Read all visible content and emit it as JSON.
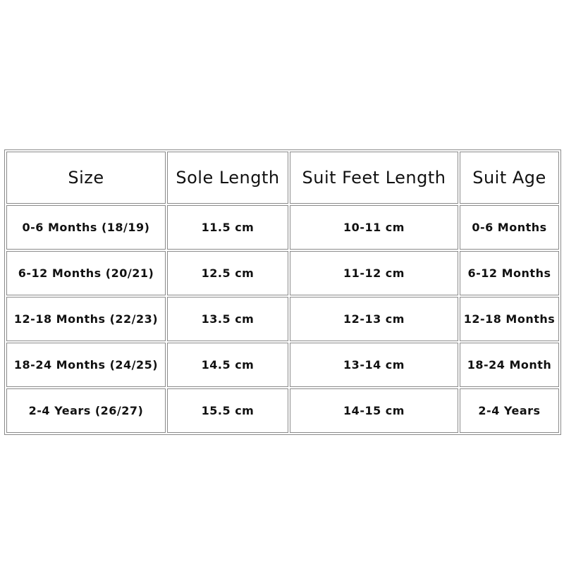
{
  "table": {
    "header": [
      "Size",
      "Sole Length",
      "Suit Feet Length",
      "Suit Age"
    ],
    "rows": [
      [
        "0-6 Months (18/19)",
        "11.5 cm",
        "10-11 cm",
        "0-6 Months"
      ],
      [
        "6-12 Months (20/21)",
        "12.5 cm",
        "11-12 cm",
        "6-12 Months"
      ],
      [
        "12-18 Months (22/23)",
        "13.5 cm",
        "12-13 cm",
        "12-18 Months"
      ],
      [
        "18-24 Months (24/25)",
        "14.5 cm",
        "13-14 cm",
        "18-24 Month"
      ],
      [
        "2-4 Years (26/27)",
        "15.5 cm",
        "14-15 cm",
        "2-4 Years"
      ]
    ]
  }
}
